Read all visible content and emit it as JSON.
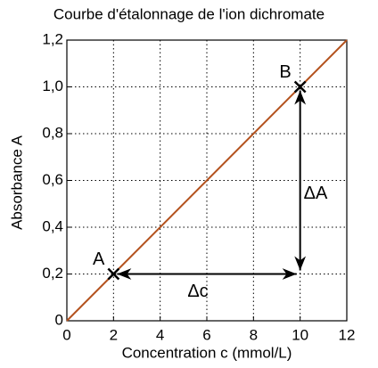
{
  "chart_data": {
    "type": "line",
    "title": "Courbe d'étalonnage de l'ion dichromate",
    "xlabel": "Concentration c (mmol/L)",
    "ylabel": "Absorbance A",
    "x": [
      0,
      12
    ],
    "series": [
      {
        "name": "Absorbance",
        "color": "#b4521e",
        "values": [
          0,
          1.2
        ]
      }
    ],
    "points": [
      {
        "label": "A",
        "x": 2,
        "y": 0.2
      },
      {
        "label": "B",
        "x": 10,
        "y": 1.0
      }
    ],
    "annotations": [
      "Δc",
      "ΔA"
    ],
    "xlim": [
      0,
      12
    ],
    "xticks": [
      0,
      2,
      4,
      6,
      8,
      10,
      12
    ],
    "ylim": [
      0,
      1.2
    ],
    "yticks": [
      0,
      {
        "value": 0.2,
        "label": "0,2"
      },
      {
        "value": 0.4,
        "label": "0,4"
      },
      {
        "value": 0.6,
        "label": "0,6"
      },
      {
        "value": 0.8,
        "label": "0,8"
      },
      {
        "value": 1.0,
        "label": "1,0"
      },
      {
        "value": 1.2,
        "label": "1,2"
      }
    ],
    "grid": true
  }
}
